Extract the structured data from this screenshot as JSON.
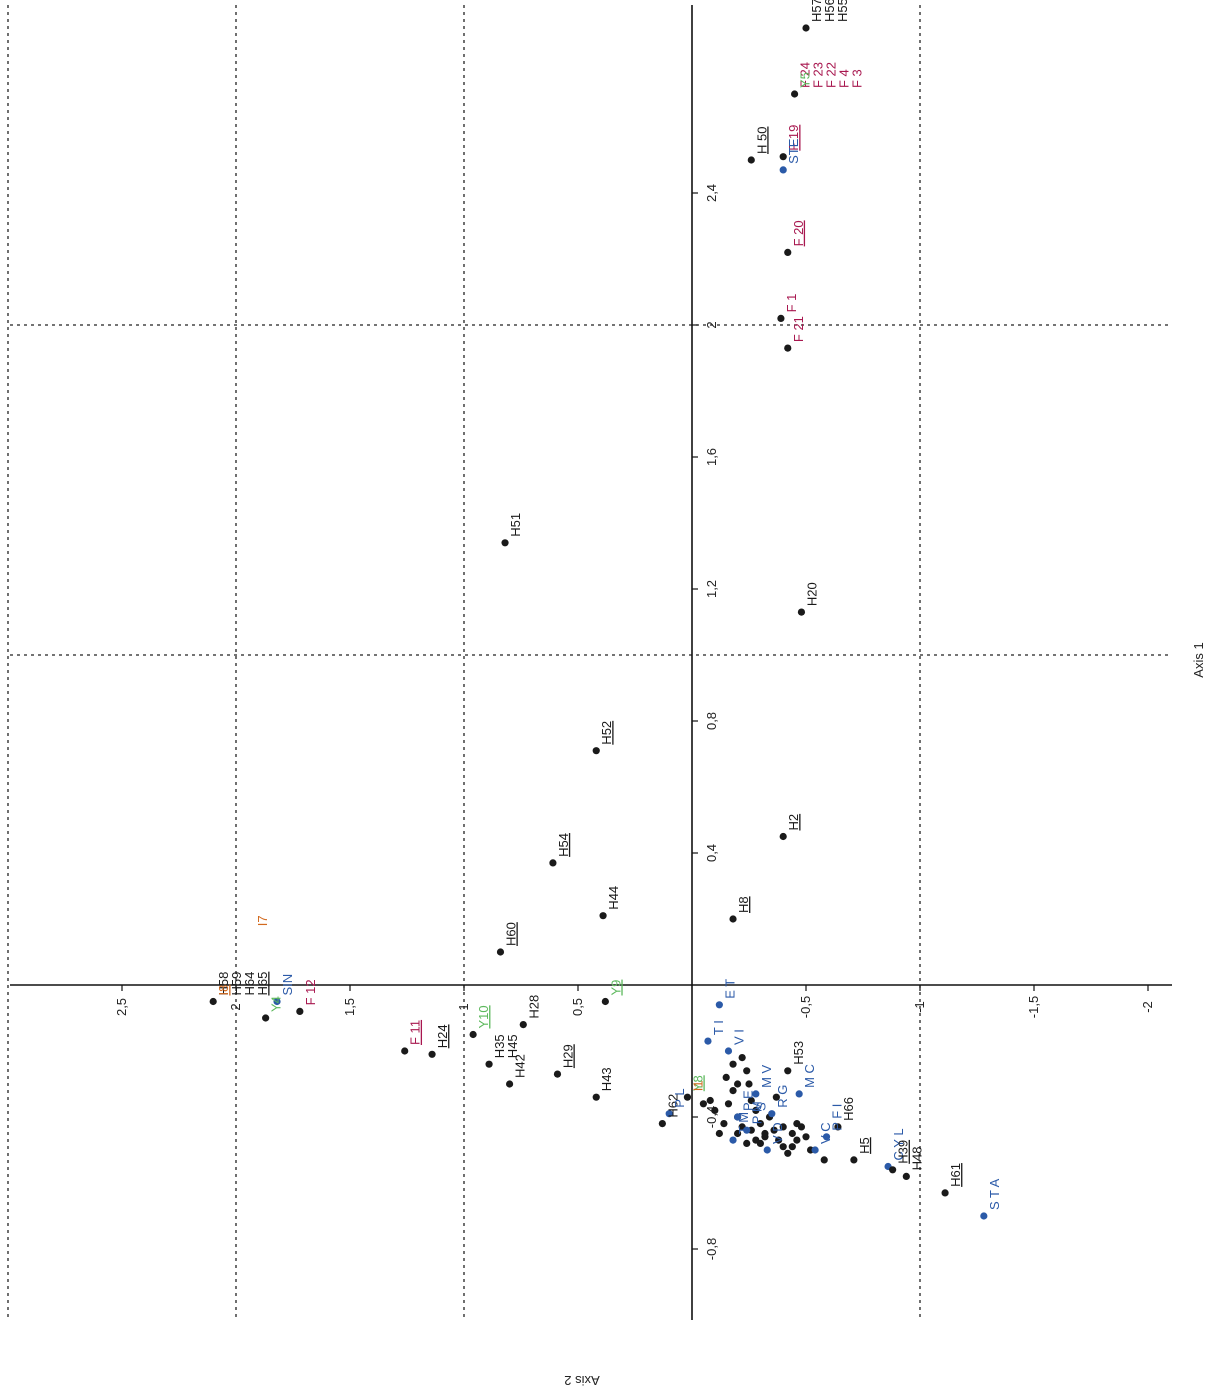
{
  "chart_data": {
    "type": "scatter",
    "xlabel": "Axis 1",
    "ylabel": "Axis 2",
    "x_ticks": [
      -2,
      -1.5,
      -1,
      -0.5,
      0.5,
      1,
      1.5,
      2,
      2.5
    ],
    "x_tick_labels": [
      "-2",
      "-1,5",
      "-1",
      "-0,5",
      "0,5",
      "1",
      "1,5",
      "2",
      "2,5"
    ],
    "y_ticks": [
      -0.8,
      -0.4,
      0.4,
      0.8,
      1.2,
      1.6,
      2,
      2.4
    ],
    "y_tick_labels": [
      "-0,8",
      "-0,4",
      "0,4",
      "0,8",
      "1,2",
      "1,6",
      "2",
      "2,4"
    ],
    "grid_x": [
      -1,
      1,
      2,
      3
    ],
    "grid_y": [
      1,
      2
    ],
    "colors": {
      "point": "#1a1a1a",
      "blue": "#2b5aa8",
      "red": "#a8174f",
      "green": "#5cb85c",
      "orange": "#d2691e",
      "black": "#1a1a1a"
    },
    "points": [
      {
        "x": -0.5,
        "y": 2.9,
        "color": "black",
        "label_color": "black",
        "labels": [
          {
            "t": "H57"
          },
          {
            "t": "H56"
          },
          {
            "t": "H55"
          }
        ]
      },
      {
        "x": -0.45,
        "y": 2.7,
        "color": "black",
        "label_color": "red",
        "labels": [
          {
            "t": "F 24"
          },
          {
            "t": "F 23"
          },
          {
            "t": "F 22"
          },
          {
            "t": "F 4"
          },
          {
            "t": "F 3"
          }
        ]
      },
      {
        "x": -0.45,
        "y": 2.7,
        "color": "none",
        "label_color": "green",
        "labels": [
          {
            "t": "Y5"
          }
        ]
      },
      {
        "x": -0.26,
        "y": 2.5,
        "color": "black",
        "label_color": "black",
        "labels": [
          {
            "t": "H 50",
            "u": true
          }
        ]
      },
      {
        "x": -0.4,
        "y": 2.51,
        "color": "black",
        "label_color": "red",
        "labels": [
          {
            "t": "F 19",
            "u": true
          }
        ]
      },
      {
        "x": -0.4,
        "y": 2.47,
        "color": "blue",
        "label_color": "blue",
        "labels": [
          {
            "t": "STE"
          }
        ]
      },
      {
        "x": -0.42,
        "y": 2.22,
        "color": "black",
        "label_color": "red",
        "labels": [
          {
            "t": "F 20",
            "u": true
          }
        ]
      },
      {
        "x": -0.39,
        "y": 2.02,
        "color": "black",
        "label_color": "red",
        "labels": [
          {
            "t": "F 1"
          }
        ]
      },
      {
        "x": -0.42,
        "y": 1.93,
        "color": "black",
        "label_color": "red",
        "labels": [
          {
            "t": "F 21"
          }
        ]
      },
      {
        "x": 0.82,
        "y": 1.34,
        "color": "black",
        "label_color": "black",
        "labels": [
          {
            "t": "H51"
          }
        ]
      },
      {
        "x": -0.48,
        "y": 1.13,
        "color": "black",
        "label_color": "black",
        "labels": [
          {
            "t": "H20"
          }
        ]
      },
      {
        "x": 0.42,
        "y": 0.71,
        "color": "black",
        "label_color": "black",
        "labels": [
          {
            "t": "H52",
            "u": true
          }
        ]
      },
      {
        "x": 0.61,
        "y": 0.37,
        "color": "black",
        "label_color": "black",
        "labels": [
          {
            "t": "H54",
            "u": true
          }
        ]
      },
      {
        "x": -0.4,
        "y": 0.45,
        "color": "black",
        "label_color": "black",
        "labels": [
          {
            "t": "H2",
            "u": true
          }
        ]
      },
      {
        "x": 0.39,
        "y": 0.21,
        "color": "black",
        "label_color": "black",
        "labels": [
          {
            "t": "H44"
          }
        ]
      },
      {
        "x": -0.18,
        "y": 0.2,
        "color": "black",
        "label_color": "black",
        "labels": [
          {
            "t": "H8",
            "u": true
          }
        ]
      },
      {
        "x": 0.84,
        "y": 0.1,
        "color": "black",
        "label_color": "black",
        "labels": [
          {
            "t": "H60",
            "u": true
          }
        ]
      },
      {
        "x": 1.93,
        "y": 0.16,
        "color": "none",
        "label_color": "orange",
        "labels": [
          {
            "t": "I7"
          }
        ]
      },
      {
        "x": 2.1,
        "y": -0.05,
        "color": "black",
        "label_color": "black",
        "labels": [
          {
            "t": "H58"
          },
          {
            "t": "H59"
          },
          {
            "t": "H64"
          },
          {
            "t": "H65",
            "u": true
          }
        ]
      },
      {
        "x": 2.1,
        "y": -0.05,
        "color": "none",
        "label_color": "orange",
        "labels": [
          {
            "t": "I8",
            "u": true
          }
        ]
      },
      {
        "x": 1.82,
        "y": -0.05,
        "color": "blue",
        "label_color": "blue",
        "labels": [
          {
            "t": "SIN"
          }
        ]
      },
      {
        "x": 1.87,
        "y": -0.1,
        "color": "black",
        "label_color": "green",
        "labels": [
          {
            "t": "Y4"
          }
        ]
      },
      {
        "x": 1.72,
        "y": -0.08,
        "color": "black",
        "label_color": "red",
        "labels": [
          {
            "t": "F 12"
          }
        ]
      },
      {
        "x": 1.26,
        "y": -0.2,
        "color": "black",
        "label_color": "red",
        "labels": [
          {
            "t": "F 11",
            "u": true
          }
        ]
      },
      {
        "x": 1.14,
        "y": -0.21,
        "color": "black",
        "label_color": "black",
        "labels": [
          {
            "t": "H24",
            "u": true
          }
        ]
      },
      {
        "x": 0.96,
        "y": -0.15,
        "color": "black",
        "label_color": "green",
        "labels": [
          {
            "t": "Y10",
            "u": true
          }
        ]
      },
      {
        "x": 0.89,
        "y": -0.24,
        "color": "black",
        "label_color": "black",
        "labels": [
          {
            "t": "H35"
          },
          {
            "t": "H45"
          }
        ]
      },
      {
        "x": 0.74,
        "y": -0.12,
        "color": "black",
        "label_color": "black",
        "labels": [
          {
            "t": "H28"
          }
        ]
      },
      {
        "x": 0.8,
        "y": -0.3,
        "color": "black",
        "label_color": "black",
        "labels": [
          {
            "t": "H42"
          }
        ]
      },
      {
        "x": 0.59,
        "y": -0.27,
        "color": "black",
        "label_color": "black",
        "labels": [
          {
            "t": "H29",
            "u": true
          }
        ]
      },
      {
        "x": 0.38,
        "y": -0.05,
        "color": "black",
        "label_color": "green",
        "labels": [
          {
            "t": "Y9",
            "u": true
          }
        ]
      },
      {
        "x": 0.42,
        "y": -0.34,
        "color": "black",
        "label_color": "black",
        "labels": [
          {
            "t": "H43"
          }
        ]
      },
      {
        "x": 0.13,
        "y": -0.42,
        "color": "black",
        "label_color": "black",
        "labels": [
          {
            "t": "H62"
          }
        ]
      },
      {
        "x": 0.1,
        "y": -0.39,
        "color": "blue",
        "label_color": "blue",
        "labels": [
          {
            "t": "P L"
          }
        ]
      },
      {
        "x": 0.02,
        "y": -0.34,
        "color": "black",
        "label_color": "green",
        "labels": [
          {
            "t": "Y8",
            "u": true
          }
        ]
      },
      {
        "x": 0.02,
        "y": -0.34,
        "color": "none",
        "label_color": "orange",
        "labels": [
          {
            "t": "I1"
          }
        ]
      },
      {
        "x": -0.12,
        "y": -0.06,
        "color": "blue",
        "label_color": "blue",
        "labels": [
          {
            "t": "E T"
          }
        ]
      },
      {
        "x": -0.07,
        "y": -0.17,
        "color": "blue",
        "label_color": "blue",
        "labels": [
          {
            "t": "T I"
          }
        ]
      },
      {
        "x": -0.16,
        "y": -0.2,
        "color": "blue",
        "label_color": "blue",
        "labels": [
          {
            "t": "V I"
          }
        ]
      },
      {
        "x": -0.42,
        "y": -0.26,
        "color": "black",
        "label_color": "black",
        "labels": [
          {
            "t": "H53"
          }
        ]
      },
      {
        "x": -0.47,
        "y": -0.33,
        "color": "blue",
        "label_color": "blue",
        "labels": [
          {
            "t": "M C"
          }
        ]
      },
      {
        "x": -0.35,
        "y": -0.39,
        "color": "blue",
        "label_color": "blue",
        "labels": [
          {
            "t": "R G"
          }
        ]
      },
      {
        "x": -0.28,
        "y": -0.33,
        "color": "blue",
        "label_color": "blue",
        "labels": [
          {
            "t": "M V"
          }
        ]
      },
      {
        "x": -0.2,
        "y": -0.4,
        "color": "blue",
        "label_color": "blue",
        "labels": [
          {
            "t": "P E"
          },
          {
            "t": "S"
          }
        ]
      },
      {
        "x": -0.24,
        "y": -0.44,
        "color": "blue",
        "label_color": "blue",
        "labels": [
          {
            "t": "P M"
          }
        ]
      },
      {
        "x": -0.18,
        "y": -0.47,
        "color": "blue",
        "label_color": "blue",
        "labels": [
          {
            "t": "T M"
          }
        ]
      },
      {
        "x": -0.33,
        "y": -0.5,
        "color": "blue",
        "label_color": "blue",
        "labels": [
          {
            "t": "V D"
          }
        ]
      },
      {
        "x": -0.54,
        "y": -0.5,
        "color": "blue",
        "label_color": "blue",
        "labels": [
          {
            "t": "V C"
          }
        ]
      },
      {
        "x": -0.59,
        "y": -0.46,
        "color": "blue",
        "label_color": "blue",
        "labels": [
          {
            "t": "P F I"
          }
        ]
      },
      {
        "x": -0.64,
        "y": -0.43,
        "color": "black",
        "label_color": "black",
        "labels": [
          {
            "t": "H66"
          }
        ]
      },
      {
        "x": -0.71,
        "y": -0.53,
        "color": "black",
        "label_color": "black",
        "labels": [
          {
            "t": "H5",
            "u": true
          }
        ]
      },
      {
        "x": -0.86,
        "y": -0.55,
        "color": "blue",
        "label_color": "blue",
        "labels": [
          {
            "t": "C Y L"
          }
        ]
      },
      {
        "x": -0.88,
        "y": -0.56,
        "color": "black",
        "label_color": "black",
        "labels": [
          {
            "t": "H39",
            "u": true
          }
        ]
      },
      {
        "x": -0.94,
        "y": -0.58,
        "color": "black",
        "label_color": "black",
        "labels": [
          {
            "t": "H48"
          }
        ]
      },
      {
        "x": -1.11,
        "y": -0.63,
        "color": "black",
        "label_color": "black",
        "labels": [
          {
            "t": "H61",
            "u": true
          }
        ]
      },
      {
        "x": -1.28,
        "y": -0.7,
        "color": "blue",
        "label_color": "blue",
        "labels": [
          {
            "t": "S T A"
          }
        ]
      }
    ],
    "cluster_points": [
      [
        -0.08,
        -0.35
      ],
      [
        -0.1,
        -0.38
      ],
      [
        -0.15,
        -0.28
      ],
      [
        -0.18,
        -0.24
      ],
      [
        -0.22,
        -0.22
      ],
      [
        -0.2,
        -0.3
      ],
      [
        -0.25,
        -0.3
      ],
      [
        -0.26,
        -0.35
      ],
      [
        -0.28,
        -0.38
      ],
      [
        -0.3,
        -0.42
      ],
      [
        -0.32,
        -0.45
      ],
      [
        -0.36,
        -0.44
      ],
      [
        -0.38,
        -0.47
      ],
      [
        -0.4,
        -0.49
      ],
      [
        -0.42,
        -0.51
      ],
      [
        -0.44,
        -0.45
      ],
      [
        -0.46,
        -0.47
      ],
      [
        -0.48,
        -0.43
      ],
      [
        -0.5,
        -0.46
      ],
      [
        -0.52,
        -0.5
      ],
      [
        -0.2,
        -0.45
      ],
      [
        -0.22,
        -0.43
      ],
      [
        -0.24,
        -0.48
      ],
      [
        -0.14,
        -0.42
      ],
      [
        -0.16,
        -0.36
      ],
      [
        -0.26,
        -0.44
      ],
      [
        -0.3,
        -0.48
      ],
      [
        -0.34,
        -0.4
      ],
      [
        -0.37,
        -0.34
      ],
      [
        -0.05,
        -0.36
      ],
      [
        -0.12,
        -0.45
      ],
      [
        -0.44,
        -0.49
      ],
      [
        -0.58,
        -0.53
      ],
      [
        -0.46,
        -0.42
      ],
      [
        -0.2,
        -0.4
      ],
      [
        -0.28,
        -0.47
      ],
      [
        -0.4,
        -0.43
      ],
      [
        -0.18,
        -0.32
      ],
      [
        -0.24,
        -0.26
      ],
      [
        -0.32,
        -0.46
      ]
    ]
  }
}
